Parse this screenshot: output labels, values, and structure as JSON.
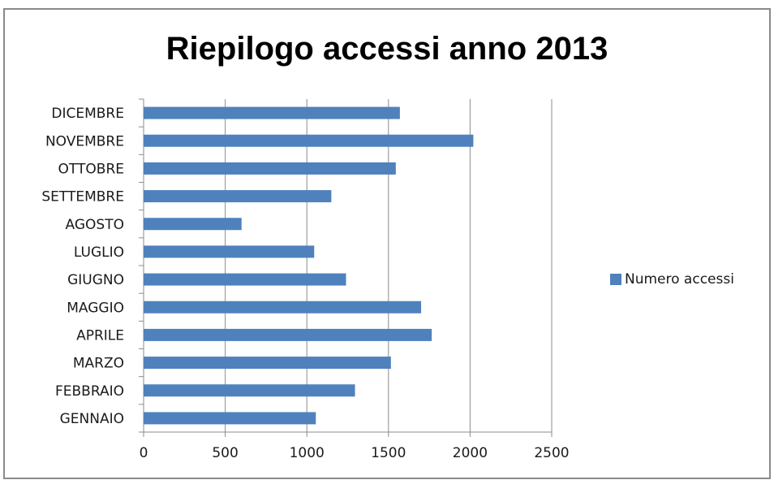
{
  "chart_data": {
    "type": "bar",
    "orientation": "horizontal",
    "title": "Riepilogo accessi anno 2013",
    "categories": [
      "GENNAIO",
      "FEBBRAIO",
      "MARZO",
      "APRILE",
      "MAGGIO",
      "GIUGNO",
      "LUGLIO",
      "AGOSTO",
      "SETTEMBRE",
      "OTTOBRE",
      "NOVEMBRE",
      "DICEMBRE"
    ],
    "series": [
      {
        "name": "Numero accessi",
        "color": "#4f81bd",
        "values": [
          1055,
          1295,
          1515,
          1765,
          1700,
          1240,
          1045,
          600,
          1150,
          1545,
          2020,
          1570
        ]
      }
    ],
    "xlim": [
      0,
      2500
    ],
    "xticks": [
      0,
      500,
      1000,
      1500,
      2000,
      2500
    ],
    "grid": "vertical",
    "legend": "right",
    "xlabel": "",
    "ylabel": ""
  }
}
